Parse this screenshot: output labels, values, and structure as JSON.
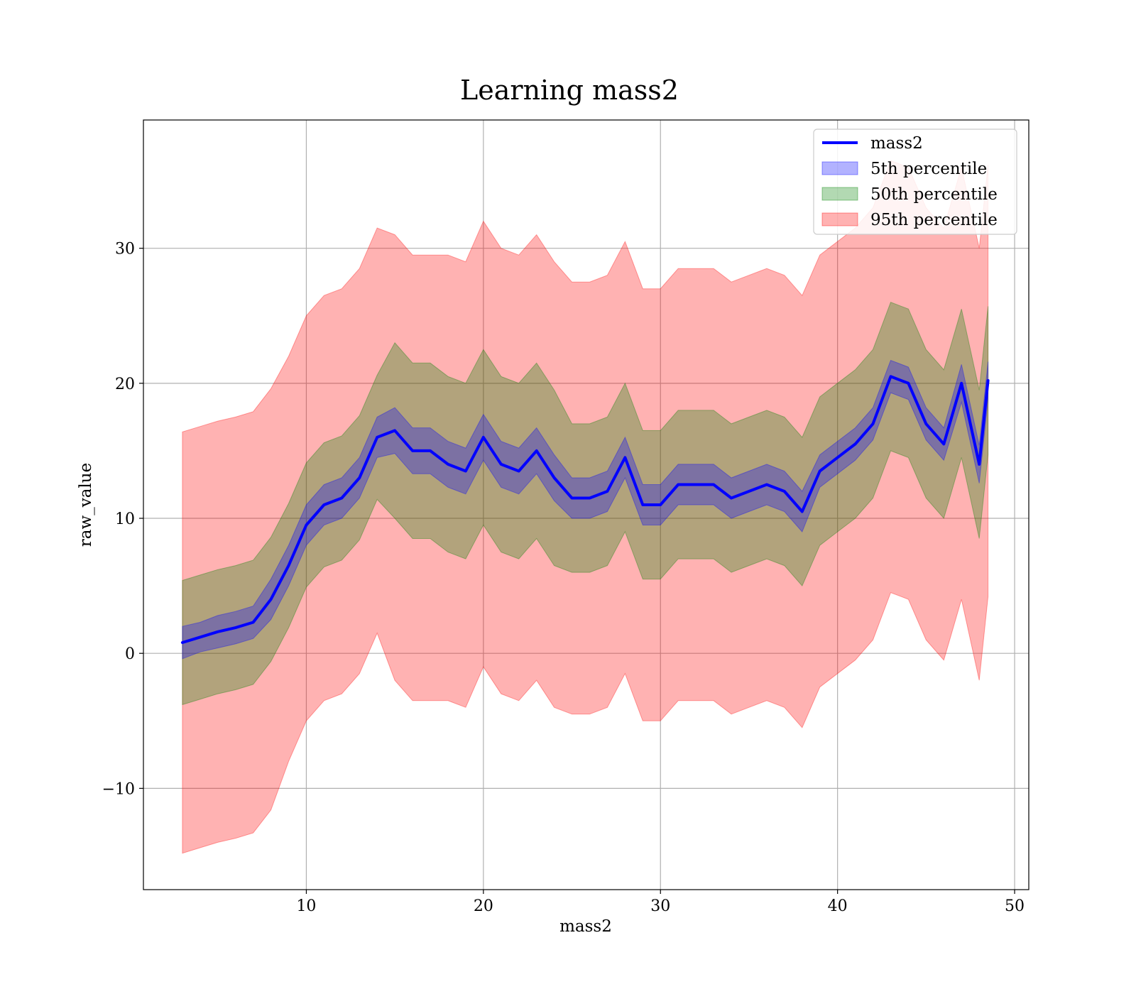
{
  "chart_data": {
    "type": "line",
    "title": "Learning mass2",
    "xlabel": "mass2",
    "ylabel": "raw_value",
    "xlim": [
      0.8,
      50.8
    ],
    "ylim": [
      -17.5,
      39.5
    ],
    "xticks": [
      10,
      20,
      30,
      40,
      50
    ],
    "xtick_labels": [
      "10",
      "20",
      "30",
      "40",
      "50"
    ],
    "yticks": [
      -10,
      0,
      10,
      20,
      30
    ],
    "ytick_labels": [
      "−10",
      "0",
      "10",
      "20",
      "30"
    ],
    "grid": true,
    "legend_position": "top-right",
    "x": [
      3,
      4,
      5,
      6,
      7,
      8,
      9,
      10,
      11,
      12,
      13,
      14,
      15,
      16,
      17,
      18,
      19,
      20,
      21,
      22,
      23,
      24,
      25,
      26,
      27,
      28,
      29,
      30,
      31,
      32,
      33,
      34,
      35,
      36,
      37,
      38,
      39,
      40,
      41,
      42,
      43,
      44,
      45,
      46,
      47,
      47.5,
      48,
      48.5
    ],
    "series": [
      {
        "name": "mass2",
        "kind": "line",
        "color": "#0000ff",
        "values": [
          0.8,
          1.2,
          1.6,
          1.9,
          2.3,
          4.0,
          6.5,
          9.5,
          11.0,
          11.5,
          13.0,
          16.0,
          16.5,
          15.0,
          15.0,
          14.0,
          13.5,
          16.0,
          14.0,
          13.5,
          15.0,
          13.0,
          11.5,
          11.5,
          12.0,
          14.5,
          11.0,
          11.0,
          12.5,
          12.5,
          12.5,
          11.5,
          12.0,
          12.5,
          12.0,
          10.5,
          13.5,
          14.5,
          15.5,
          17.0,
          20.5,
          20.0,
          17.0,
          15.5,
          20.0,
          17.0,
          14.0,
          20.2
        ]
      },
      {
        "name": "5th percentile",
        "kind": "band",
        "color": "#0000ff",
        "opacity": 0.3,
        "lower": [
          -0.4,
          0.1,
          0.4,
          0.7,
          1.1,
          2.5,
          5.0,
          8.0,
          9.5,
          10.0,
          11.5,
          14.5,
          14.8,
          13.3,
          13.3,
          12.3,
          11.8,
          14.3,
          12.3,
          11.8,
          13.3,
          11.3,
          10.0,
          10.0,
          10.5,
          13.0,
          9.5,
          9.5,
          11.0,
          11.0,
          11.0,
          10.0,
          10.5,
          11.0,
          10.5,
          9.0,
          12.3,
          13.3,
          14.3,
          15.8,
          19.3,
          18.8,
          15.8,
          14.3,
          18.6,
          15.6,
          12.6,
          18.8
        ],
        "upper": [
          2.0,
          2.3,
          2.8,
          3.1,
          3.5,
          5.5,
          8.0,
          11.0,
          12.5,
          13.0,
          14.5,
          17.5,
          18.2,
          16.7,
          16.7,
          15.7,
          15.2,
          17.7,
          15.7,
          15.2,
          16.7,
          14.7,
          13.0,
          13.0,
          13.5,
          16.0,
          12.5,
          12.5,
          14.0,
          14.0,
          14.0,
          13.0,
          13.5,
          14.0,
          13.5,
          12.0,
          14.7,
          15.7,
          16.7,
          18.2,
          21.7,
          21.2,
          18.2,
          16.7,
          21.4,
          18.4,
          15.4,
          21.6
        ]
      },
      {
        "name": "50th percentile",
        "kind": "band",
        "color": "#008000",
        "opacity": 0.3,
        "lower": [
          -3.8,
          -3.4,
          -3.0,
          -2.7,
          -2.3,
          -0.6,
          1.9,
          4.9,
          6.4,
          6.9,
          8.4,
          11.4,
          10.0,
          8.5,
          8.5,
          7.5,
          7.0,
          9.5,
          7.5,
          7.0,
          8.5,
          6.5,
          6.0,
          6.0,
          6.5,
          9.0,
          5.5,
          5.5,
          7.0,
          7.0,
          7.0,
          6.0,
          6.5,
          7.0,
          6.5,
          5.0,
          8.0,
          9.0,
          10.0,
          11.5,
          15.0,
          14.5,
          11.5,
          10.0,
          14.5,
          11.5,
          8.5,
          14.7
        ],
        "upper": [
          5.4,
          5.8,
          6.2,
          6.5,
          6.9,
          8.6,
          11.1,
          14.1,
          15.6,
          16.1,
          17.6,
          20.6,
          23.0,
          21.5,
          21.5,
          20.5,
          20.0,
          22.5,
          20.5,
          20.0,
          21.5,
          19.5,
          17.0,
          17.0,
          17.5,
          20.0,
          16.5,
          16.5,
          18.0,
          18.0,
          18.0,
          17.0,
          17.5,
          18.0,
          17.5,
          16.0,
          19.0,
          20.0,
          21.0,
          22.5,
          26.0,
          25.5,
          22.5,
          21.0,
          25.5,
          22.5,
          19.5,
          25.7
        ]
      },
      {
        "name": "95th percentile",
        "kind": "band",
        "color": "#ff0000",
        "opacity": 0.3,
        "lower": [
          -14.8,
          -14.4,
          -14.0,
          -13.7,
          -13.3,
          -11.6,
          -8.0,
          -5.0,
          -3.5,
          -3.0,
          -1.5,
          1.5,
          -2.0,
          -3.5,
          -3.5,
          -3.5,
          -4.0,
          -1.0,
          -3.0,
          -3.5,
          -2.0,
          -4.0,
          -4.5,
          -4.5,
          -4.0,
          -1.5,
          -5.0,
          -5.0,
          -3.5,
          -3.5,
          -3.5,
          -4.5,
          -4.0,
          -3.5,
          -4.0,
          -5.5,
          -2.5,
          -1.5,
          -0.5,
          1.0,
          4.5,
          4.0,
          1.0,
          -0.5,
          4.0,
          1.0,
          -2.0,
          4.2
        ],
        "upper": [
          16.4,
          16.8,
          17.2,
          17.5,
          17.9,
          19.6,
          22.0,
          25.0,
          26.5,
          27.0,
          28.5,
          31.5,
          31.0,
          29.5,
          29.5,
          29.5,
          29.0,
          32.0,
          30.0,
          29.5,
          31.0,
          29.0,
          27.5,
          27.5,
          28.0,
          30.5,
          27.0,
          27.0,
          28.5,
          28.5,
          28.5,
          27.5,
          28.0,
          28.5,
          28.0,
          26.5,
          29.5,
          30.5,
          31.5,
          33.0,
          36.5,
          36.0,
          33.0,
          31.5,
          36.0,
          33.0,
          30.0,
          36.2
        ]
      }
    ]
  }
}
